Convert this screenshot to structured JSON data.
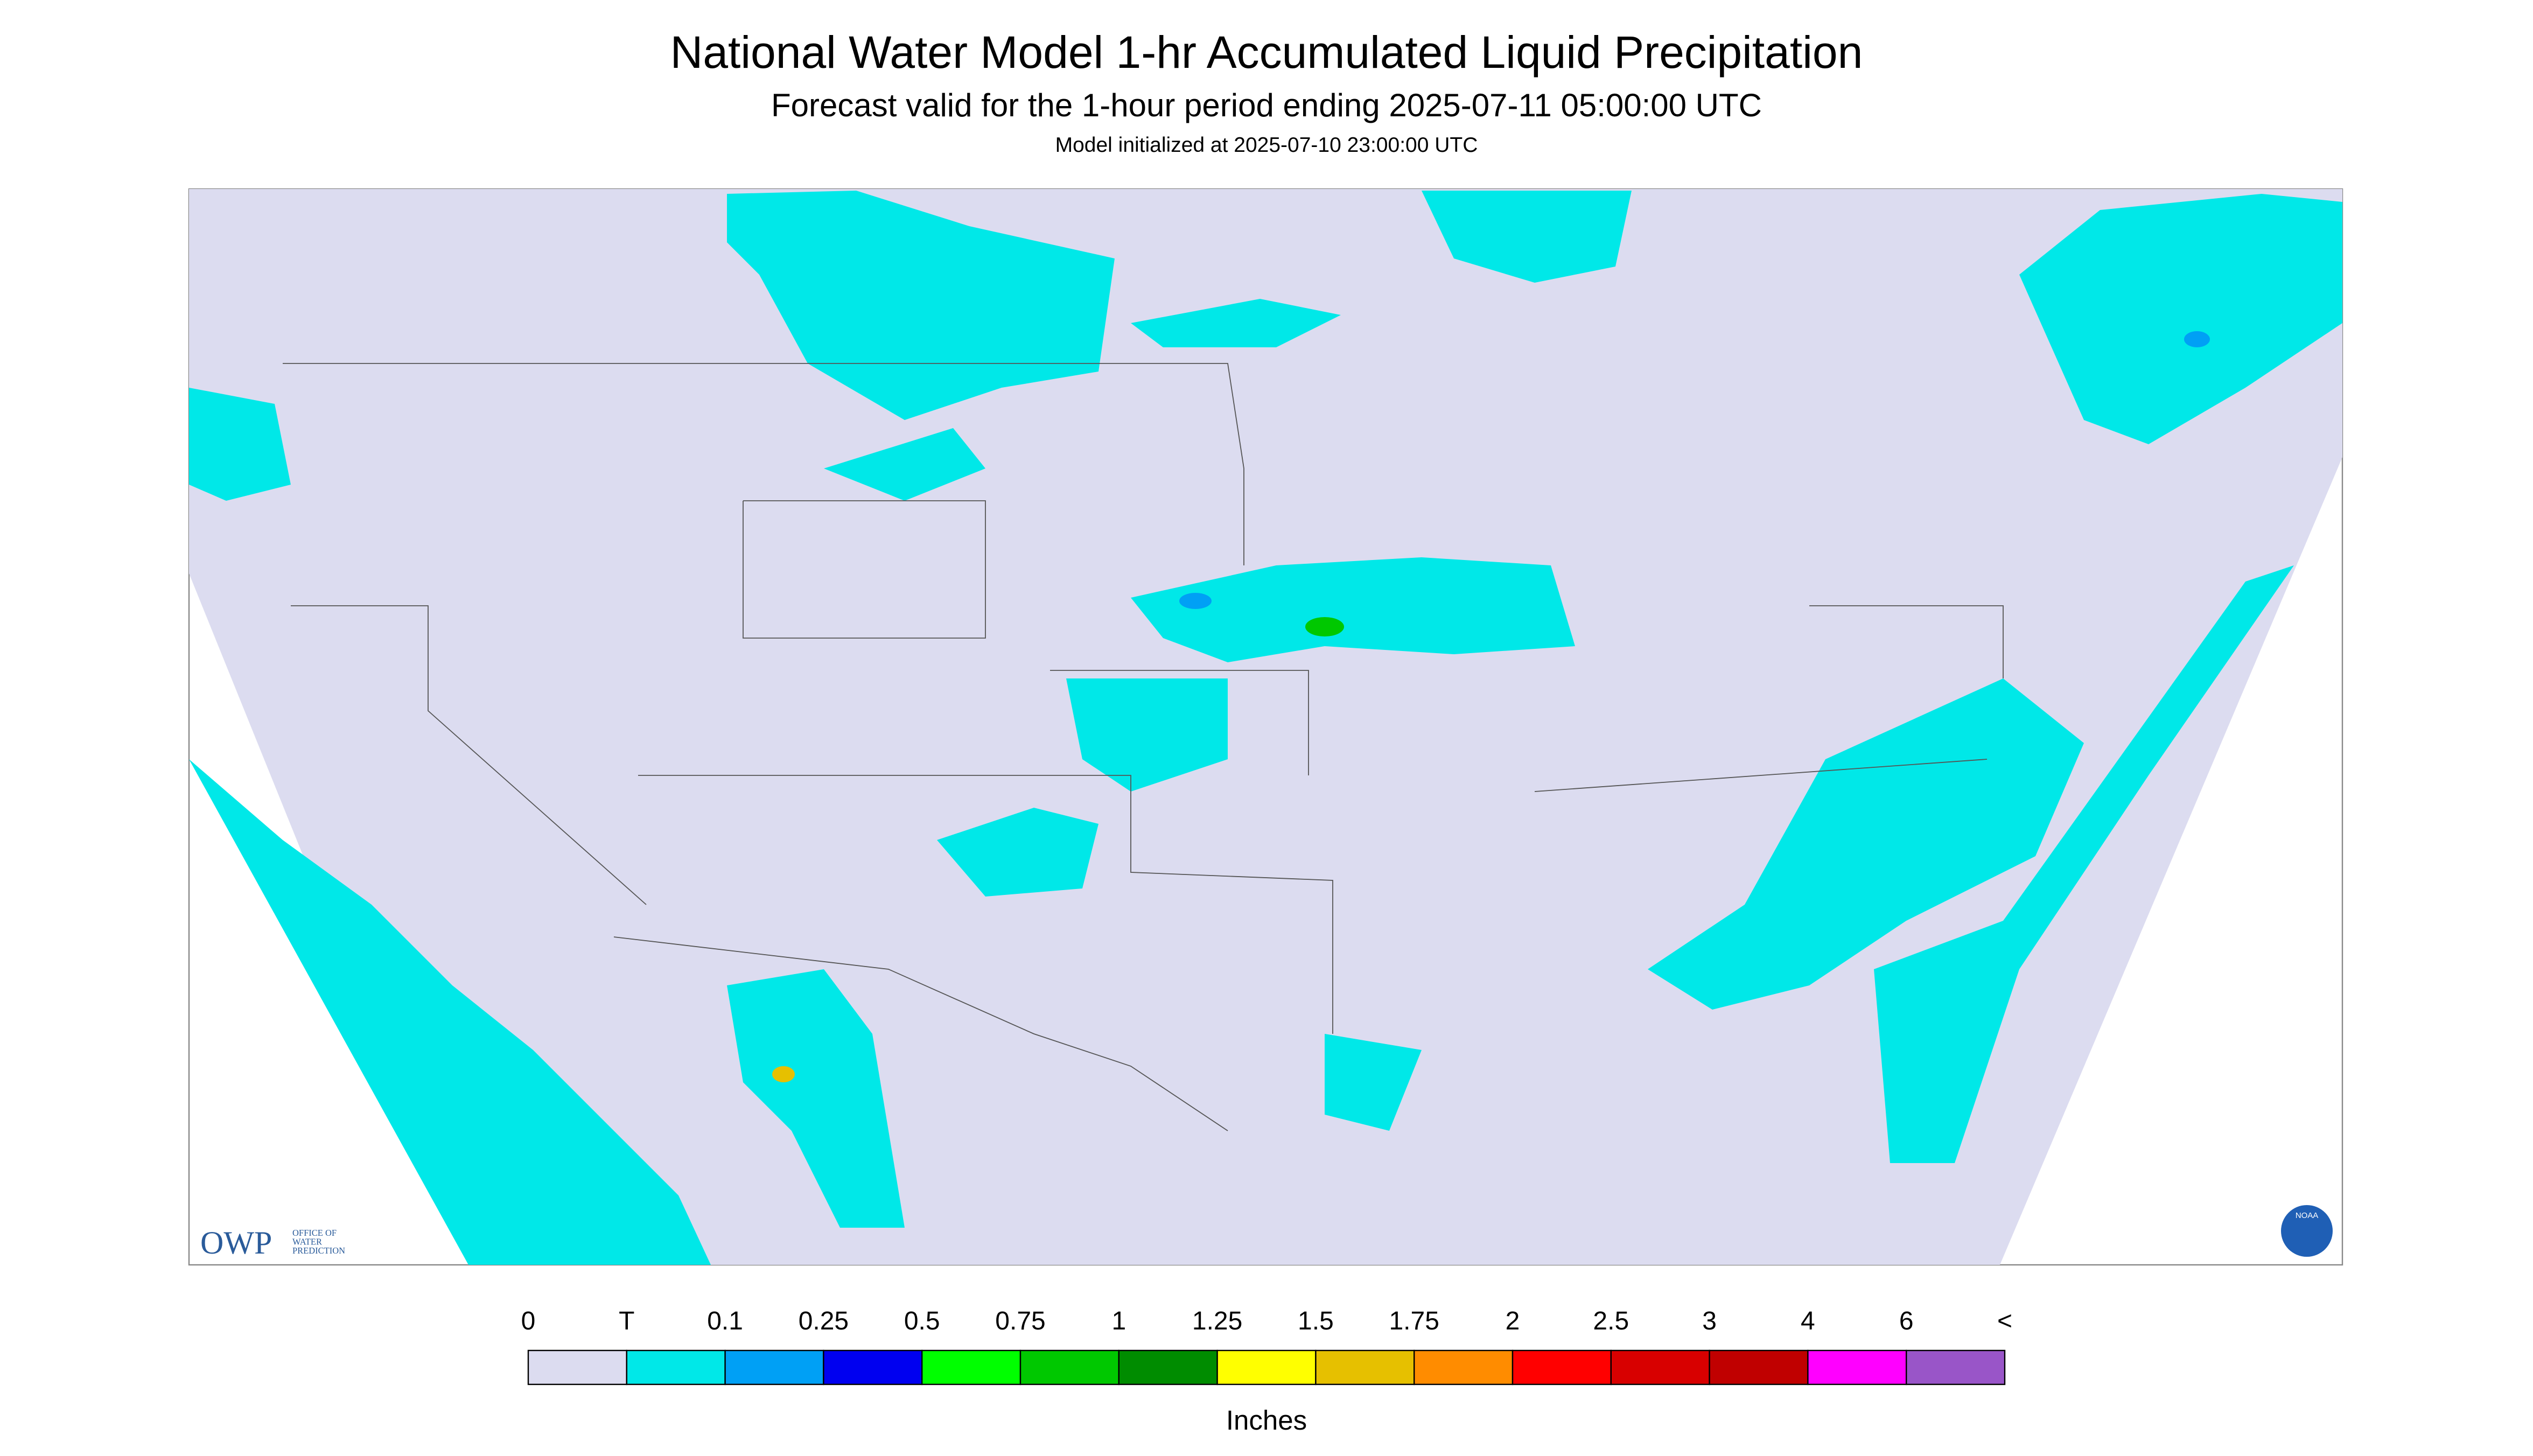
{
  "header": {
    "title": "National Water Model 1-hr Accumulated Liquid Precipitation",
    "subtitle": "Forecast valid for the 1-hour period ending 2025-07-11 05:00:00 UTC",
    "initialized": "Model initialized at 2025-07-10 23:00:00 UTC"
  },
  "logos": {
    "owp": "OWP",
    "owp_lines": [
      "OFFICE OF",
      "WATER",
      "PREDICTION"
    ],
    "noaa": "NOAA"
  },
  "legend": {
    "labels": [
      "0",
      "T",
      "0.1",
      "0.25",
      "0.5",
      "0.75",
      "1",
      "1.25",
      "1.5",
      "1.75",
      "2",
      "2.5",
      "3",
      "4",
      "6",
      "<"
    ],
    "colors": [
      "#dcdcf0",
      "#00e8e8",
      "#00a0f5",
      "#0000f0",
      "#00ff00",
      "#00c800",
      "#008c00",
      "#ffff00",
      "#e6c000",
      "#ff8c00",
      "#ff0000",
      "#d80000",
      "#c00000",
      "#ff00ff",
      "#9955c8"
    ],
    "unit": "Inches"
  }
}
